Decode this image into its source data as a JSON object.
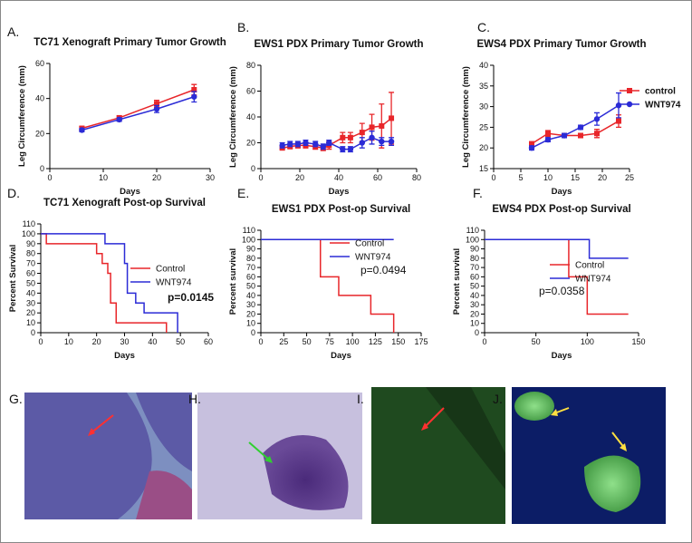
{
  "chart_data": [
    {
      "type": "line",
      "panel_label": "A.",
      "title": "TC71 Xenograft Primary Tumor Growth",
      "y_label": "Leg Circumference (mm)",
      "x_label": "Days",
      "xlim": [
        0,
        30
      ],
      "xticks": [
        0,
        10,
        20,
        30
      ],
      "ylim": [
        0,
        60
      ],
      "yticks": [
        0,
        20,
        40,
        60
      ],
      "x": [
        6,
        13,
        20,
        27
      ],
      "series": [
        {
          "name": null,
          "color": "#e8262a",
          "marker": "square",
          "values": [
            23,
            29,
            37,
            45
          ],
          "errors": [
            1,
            1,
            2,
            3
          ]
        },
        {
          "name": null,
          "color": "#2b2bd6",
          "marker": "circle",
          "values": [
            22,
            28,
            34,
            41
          ],
          "errors": [
            1,
            1,
            2,
            3
          ]
        }
      ]
    },
    {
      "type": "line",
      "panel_label": "B.",
      "title": "EWS1 PDX Primary Tumor Growth",
      "y_label": "Leg Circumference (mm)",
      "x_label": "Days",
      "xlim": [
        0,
        80
      ],
      "xticks": [
        0,
        20,
        40,
        60,
        80
      ],
      "ylim": [
        0,
        80
      ],
      "yticks": [
        0,
        20,
        40,
        60,
        80
      ],
      "x": [
        11,
        15,
        19,
        23,
        28,
        32,
        35,
        42,
        46,
        52,
        57,
        62,
        67
      ],
      "series": [
        {
          "name": null,
          "color": "#e8262a",
          "marker": "square",
          "values": [
            16,
            17,
            18,
            18,
            17,
            16,
            18,
            24,
            24,
            28,
            32,
            33,
            39
          ],
          "errors": [
            1,
            1,
            2,
            2,
            2,
            2,
            3,
            4,
            4,
            7,
            10,
            17,
            20
          ]
        },
        {
          "name": null,
          "color": "#2b2bd6",
          "marker": "circle",
          "values": [
            18,
            19,
            19,
            20,
            19,
            17,
            20,
            15,
            15,
            20,
            24,
            21,
            21
          ],
          "errors": [
            2,
            2,
            2,
            2,
            2,
            2,
            2,
            2,
            2,
            4,
            5,
            3,
            3
          ]
        }
      ]
    },
    {
      "type": "line",
      "panel_label": "C.",
      "title": "EWS4 PDX Primary Tumor Growth",
      "y_label": "Leg Circumference (mm)",
      "x_label": "Days",
      "xlim": [
        0,
        25
      ],
      "xticks": [
        0,
        5,
        10,
        15,
        20,
        25
      ],
      "ylim": [
        15,
        40
      ],
      "yticks": [
        15,
        20,
        25,
        30,
        35,
        40
      ],
      "x": [
        7,
        10,
        13,
        16,
        19,
        23
      ],
      "series": [
        {
          "name": "control",
          "color": "#e8262a",
          "marker": "square",
          "values": [
            21,
            23.5,
            23,
            23,
            23.5,
            26.5
          ],
          "errors": [
            0.5,
            0.7,
            0.5,
            0.5,
            1,
            1.5
          ]
        },
        {
          "name": "WNT974",
          "color": "#2b2bd6",
          "marker": "circle",
          "values": [
            20,
            22,
            23,
            25,
            27,
            30.3
          ],
          "errors": [
            0.5,
            0.5,
            0.5,
            0.5,
            1.5,
            3
          ]
        }
      ]
    },
    {
      "type": "step",
      "panel_label": "D.",
      "title": "TC71 Xenograft Post-op Survival",
      "y_label": "Percent Survival",
      "x_label": "Days",
      "annotation": "p=0.0145",
      "xlim": [
        0,
        60
      ],
      "xticks": [
        0,
        10,
        20,
        30,
        40,
        50,
        60
      ],
      "ylim": [
        0,
        110
      ],
      "yticks": [
        0,
        10,
        20,
        30,
        40,
        50,
        60,
        70,
        80,
        90,
        100,
        110
      ],
      "series": [
        {
          "name": "Control",
          "color": "#e8262a",
          "x": [
            0,
            2,
            20,
            22,
            24,
            25,
            27,
            45
          ],
          "values": [
            100,
            90,
            80,
            70,
            60,
            30,
            10,
            0
          ]
        },
        {
          "name": "WNT974",
          "color": "#2b2bd6",
          "x": [
            0,
            23,
            30,
            31,
            34,
            37,
            49
          ],
          "values": [
            100,
            90,
            70,
            40,
            30,
            20,
            0
          ]
        }
      ]
    },
    {
      "type": "step",
      "panel_label": "E.",
      "title": "EWS1 PDX Post-op Survival",
      "y_label": "Percent survival",
      "x_label": "Days",
      "annotation": "p=0.0494",
      "xlim": [
        0,
        175
      ],
      "xticks": [
        0,
        25,
        50,
        75,
        100,
        125,
        150,
        175
      ],
      "ylim": [
        0,
        110
      ],
      "yticks": [
        0,
        10,
        20,
        30,
        40,
        50,
        60,
        70,
        80,
        90,
        100,
        110
      ],
      "series": [
        {
          "name": "Control",
          "color": "#e8262a",
          "x": [
            0,
            65,
            85,
            120,
            145
          ],
          "values": [
            100,
            60,
            40,
            20,
            0
          ]
        },
        {
          "name": "WNT974",
          "color": "#2b2bd6",
          "x": [
            0,
            145
          ],
          "values": [
            100,
            100
          ]
        }
      ]
    },
    {
      "type": "step",
      "panel_label": "F.",
      "title": "EWS4 PDX Post-op Survival",
      "y_label": "Percent survival",
      "x_label": "Days",
      "annotation": "p=0.0358",
      "xlim": [
        0,
        150
      ],
      "xticks": [
        0,
        50,
        100,
        150
      ],
      "ylim": [
        0,
        110
      ],
      "yticks": [
        0,
        10,
        20,
        30,
        40,
        50,
        60,
        70,
        80,
        90,
        100,
        110
      ],
      "series": [
        {
          "name": "Control",
          "color": "#e8262a",
          "x": [
            0,
            82,
            100,
            140
          ],
          "values": [
            100,
            60,
            20,
            20
          ]
        },
        {
          "name": "WNT974",
          "color": "#2b2bd6",
          "x": [
            0,
            102,
            140
          ],
          "values": [
            100,
            80,
            80
          ]
        }
      ]
    }
  ],
  "images": [
    {
      "panel_label": "G."
    },
    {
      "panel_label": "H."
    },
    {
      "panel_label": "I."
    },
    {
      "panel_label": "J."
    }
  ]
}
